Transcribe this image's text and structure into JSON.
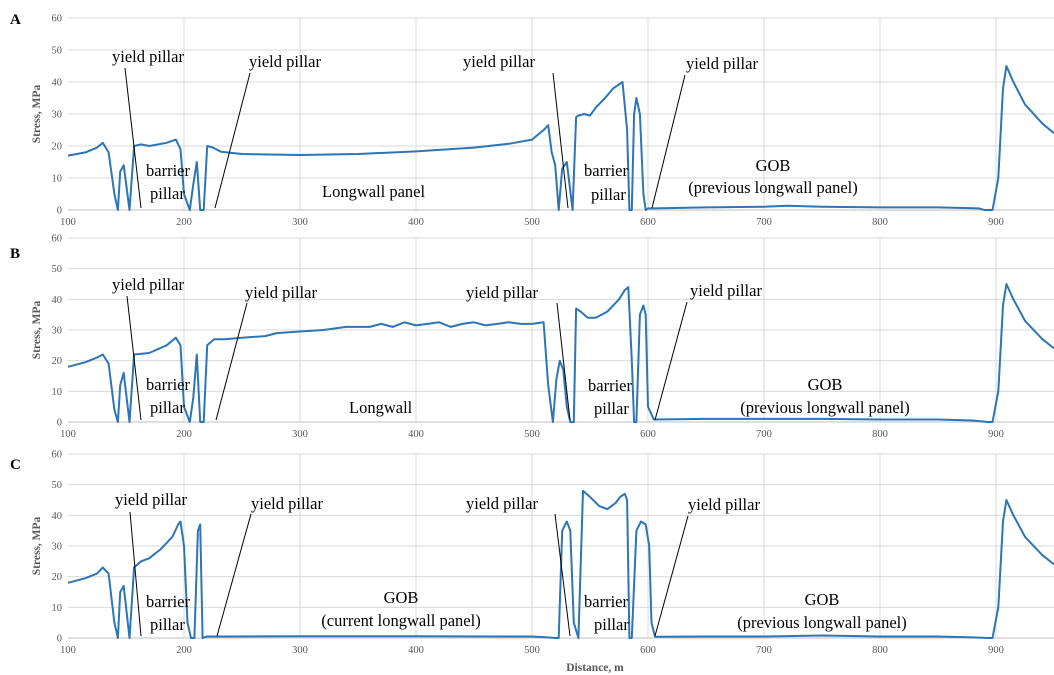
{
  "chart_data": [
    {
      "panel": "A",
      "type": "line",
      "ylabel": "Stress, MPa",
      "xlabel": "",
      "xlim": [
        100,
        950
      ],
      "ylim": [
        0,
        60
      ],
      "xticks": [
        "100",
        "200",
        "300",
        "400",
        "500",
        "600",
        "700",
        "800",
        "900"
      ],
      "yticks": [
        "0",
        "10",
        "20",
        "30",
        "40",
        "50",
        "60"
      ],
      "grid": true,
      "series": [
        {
          "x": [
            100,
            115,
            125,
            130,
            135,
            140,
            143,
            145,
            148,
            153,
            157,
            163,
            170,
            185,
            193,
            197,
            200,
            205,
            208,
            211,
            214,
            217,
            220,
            225,
            232,
            250,
            300,
            350,
            400,
            450,
            480,
            500,
            510,
            514,
            517,
            520,
            523,
            526,
            530,
            535,
            538,
            540,
            545,
            550,
            555,
            563,
            570,
            578,
            582,
            584,
            586,
            588,
            590,
            593,
            596,
            598,
            600,
            605,
            650,
            700,
            720,
            750,
            800,
            850,
            885,
            890,
            893,
            897,
            902,
            906,
            909,
            915,
            925,
            940,
            950
          ],
          "y": [
            17,
            18,
            19.5,
            21,
            18,
            5,
            0,
            12,
            14,
            0,
            20,
            20.5,
            20,
            21,
            22,
            19,
            5,
            0,
            8,
            15,
            0,
            0,
            20,
            19.5,
            18.2,
            17.5,
            17.2,
            17.5,
            18.3,
            19.5,
            20.7,
            22,
            25,
            26.5,
            18,
            14,
            0,
            13,
            15,
            0,
            29,
            29.5,
            30,
            29.5,
            32,
            35,
            38,
            40,
            25,
            0,
            0,
            30,
            35,
            30,
            5,
            0,
            0.5,
            0.5,
            0.8,
            1,
            1.3,
            1,
            0.8,
            0.8,
            0.5,
            0,
            0,
            0,
            10,
            38,
            45,
            40,
            33,
            27,
            24
          ]
        }
      ],
      "annotations": [
        {
          "text": "yield pillar"
        },
        {
          "text": "yield pillar"
        },
        {
          "text": "yield pillar"
        },
        {
          "text": "yield pillar"
        },
        {
          "text": "barrier"
        },
        {
          "text": "pillar"
        },
        {
          "text": "Longwall panel"
        },
        {
          "text": "barrier"
        },
        {
          "text": "pillar"
        },
        {
          "text": "GOB"
        },
        {
          "text": "(previous longwall panel)"
        }
      ]
    },
    {
      "panel": "B",
      "type": "line",
      "ylabel": "Stress, MPa",
      "xlabel": "",
      "xlim": [
        100,
        950
      ],
      "ylim": [
        0,
        60
      ],
      "xticks": [
        "100",
        "200",
        "300",
        "400",
        "500",
        "600",
        "700",
        "800",
        "900"
      ],
      "yticks": [
        "0",
        "10",
        "20",
        "30",
        "40",
        "50",
        "60"
      ],
      "grid": true,
      "series": [
        {
          "x": [
            100,
            115,
            125,
            130,
            135,
            140,
            143,
            145,
            148,
            153,
            157,
            170,
            185,
            193,
            197,
            200,
            205,
            208,
            211,
            214,
            217,
            220,
            226,
            235,
            250,
            270,
            280,
            300,
            320,
            340,
            360,
            370,
            380,
            390,
            400,
            410,
            420,
            430,
            440,
            450,
            460,
            470,
            480,
            490,
            500,
            510,
            514,
            518,
            521,
            524,
            527,
            530,
            533,
            536,
            538,
            542,
            548,
            555,
            565,
            575,
            580,
            583,
            586,
            588,
            590,
            593,
            596,
            598,
            600,
            605,
            650,
            700,
            750,
            800,
            850,
            880,
            893,
            897,
            902,
            906,
            909,
            915,
            925,
            940,
            950
          ],
          "y": [
            18,
            19.5,
            21,
            22,
            19,
            4,
            0,
            12,
            16,
            0,
            22,
            22.5,
            25,
            27.5,
            25,
            5,
            0,
            8,
            22,
            0,
            0,
            25,
            27,
            27,
            27.5,
            28,
            29,
            29.5,
            30,
            31,
            31,
            32,
            31,
            32.5,
            31.5,
            32,
            32.5,
            31,
            32,
            32.5,
            31.5,
            32,
            32.5,
            32,
            32,
            32.5,
            12,
            0,
            14,
            20,
            17,
            5,
            0,
            0,
            37,
            36,
            34,
            34,
            36,
            40,
            43,
            44,
            20,
            0,
            0,
            35,
            38,
            35,
            5,
            0.8,
            1,
            1,
            1,
            0.8,
            0.8,
            0.5,
            0,
            0,
            10,
            38,
            45,
            40,
            33,
            27,
            24
          ]
        }
      ],
      "annotations": [
        {
          "text": "yield pillar"
        },
        {
          "text": "yield pillar"
        },
        {
          "text": "yield pillar"
        },
        {
          "text": "yield pillar"
        },
        {
          "text": "barrier"
        },
        {
          "text": "pillar"
        },
        {
          "text": "Longwall"
        },
        {
          "text": "barrier"
        },
        {
          "text": "pillar"
        },
        {
          "text": "GOB"
        },
        {
          "text": "(previous longwall panel)"
        }
      ]
    },
    {
      "panel": "C",
      "type": "line",
      "ylabel": "Stress, MPa",
      "xlabel": "Distance, m",
      "xlim": [
        100,
        950
      ],
      "ylim": [
        0,
        60
      ],
      "xticks": [
        "100",
        "200",
        "300",
        "400",
        "500",
        "600",
        "700",
        "800",
        "900"
      ],
      "yticks": [
        "0",
        "10",
        "20",
        "30",
        "40",
        "50",
        "60"
      ],
      "grid": true,
      "series": [
        {
          "x": [
            100,
            115,
            125,
            130,
            135,
            140,
            143,
            145,
            148,
            153,
            157,
            163,
            170,
            180,
            190,
            195,
            197,
            200,
            203,
            206,
            209,
            212,
            214,
            216,
            220,
            240,
            300,
            400,
            500,
            510,
            520,
            523,
            526,
            530,
            533,
            536,
            540,
            544,
            550,
            558,
            565,
            572,
            576,
            580,
            582,
            584,
            586,
            590,
            594,
            598,
            601,
            603,
            606,
            650,
            700,
            750,
            800,
            850,
            880,
            893,
            897,
            902,
            906,
            909,
            915,
            925,
            940,
            950
          ],
          "y": [
            18,
            19.5,
            21,
            23,
            21,
            5,
            0,
            15,
            17,
            0,
            23,
            25,
            26,
            29,
            33,
            37,
            38,
            30,
            5,
            0,
            0,
            35,
            37,
            0,
            0.5,
            0.5,
            0.6,
            0.6,
            0.5,
            0.3,
            0,
            0,
            35,
            38,
            35,
            5,
            0,
            48,
            46,
            43,
            42,
            44,
            46,
            47,
            45,
            0,
            0,
            35,
            38,
            37,
            30,
            5,
            0.4,
            0.5,
            0.5,
            0.8,
            0.5,
            0.5,
            0.2,
            0,
            0,
            10,
            38,
            45,
            40,
            33,
            27,
            24
          ]
        }
      ],
      "annotations": [
        {
          "text": "yield pillar"
        },
        {
          "text": "yield pillar"
        },
        {
          "text": "yield pillar"
        },
        {
          "text": "yield pillar"
        },
        {
          "text": "barrier"
        },
        {
          "text": "pillar"
        },
        {
          "text": "GOB"
        },
        {
          "text": "(current longwall panel)"
        },
        {
          "text": "barrier"
        },
        {
          "text": "pillar"
        },
        {
          "text": "GOB"
        },
        {
          "text": "(previous longwall panel)"
        }
      ]
    }
  ],
  "style": {
    "line_color": "#2e75b6",
    "grid_color": "#d9d9d9"
  }
}
